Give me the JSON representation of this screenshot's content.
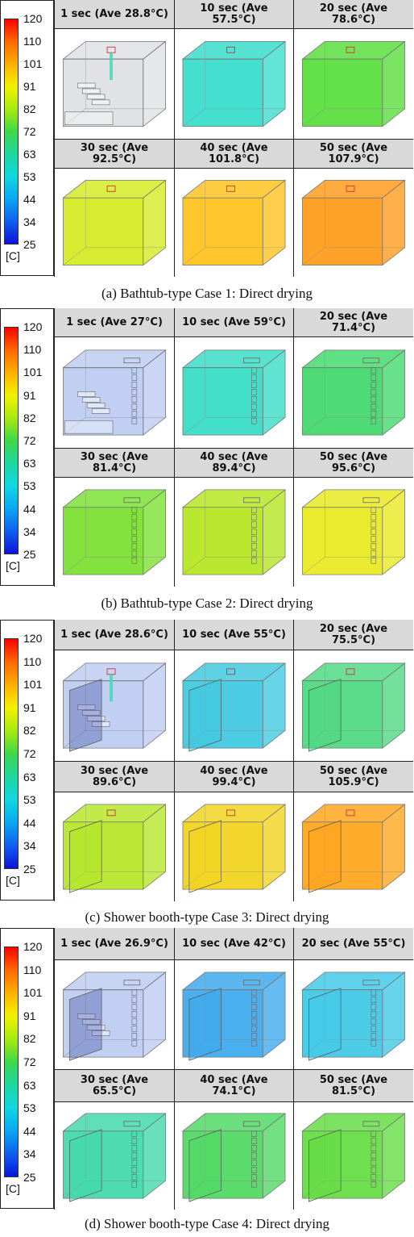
{
  "legend": {
    "ticks": [
      "120",
      "110",
      "101",
      "91",
      "82",
      "72",
      "63",
      "53",
      "44",
      "34",
      "25"
    ],
    "unit": "[C]",
    "gradient_colors": [
      "#ff0000",
      "#ff6a00",
      "#ffb000",
      "#f2f200",
      "#a8ea10",
      "#3fd84a",
      "#1fd8a0",
      "#10d8e0",
      "#0aa8f2",
      "#1060f0",
      "#0a14d8"
    ]
  },
  "panels": [
    {
      "caption": "(a) Bathtub-type Case 1: Direct drying",
      "type": "bathtub",
      "cells": [
        {
          "label": "1 sec (Ave 28.8°C)",
          "tint": "#c8cbd0",
          "initial": true
        },
        {
          "label": "10 sec (Ave 57.5°C)",
          "tint": "#35dccb"
        },
        {
          "label": "20 sec (Ave 78.6°C)",
          "tint": "#57dd3a"
        },
        {
          "label": "30 sec (Ave 92.5°C)",
          "tint": "#d4ea1f"
        },
        {
          "label": "40 sec (Ave 101.8°C)",
          "tint": "#ffc21a"
        },
        {
          "label": "50 sec (Ave 107.9°C)",
          "tint": "#ff9a18"
        }
      ]
    },
    {
      "caption": "(b) Bathtub-type Case 2: Direct drying",
      "type": "bathtub2",
      "cells": [
        {
          "label": "1 sec (Ave 27°C)",
          "tint": "#8ea8e8",
          "initial": true
        },
        {
          "label": "10 sec (Ave 59°C)",
          "tint": "#33dcc4"
        },
        {
          "label": "20 sec (Ave 71.4°C)",
          "tint": "#3fd86a"
        },
        {
          "label": "30 sec (Ave 81.4°C)",
          "tint": "#78e02e"
        },
        {
          "label": "40 sec (Ave 89.4°C)",
          "tint": "#b4e61c"
        },
        {
          "label": "50 sec (Ave 95.6°C)",
          "tint": "#e8e81c"
        }
      ]
    },
    {
      "caption": "(c) Shower booth-type Case 3: Direct drying",
      "type": "shower",
      "cells": [
        {
          "label": "1 sec (Ave 28.6°C)",
          "tint": "#8ea8e8",
          "initial": true
        },
        {
          "label": "10 sec (Ave 55°C)",
          "tint": "#3cc8e0"
        },
        {
          "label": "20 sec (Ave 75.5°C)",
          "tint": "#4cd880"
        },
        {
          "label": "30 sec (Ave 89.6°C)",
          "tint": "#b4e624"
        },
        {
          "label": "40 sec (Ave 99.4°C)",
          "tint": "#f2d21a"
        },
        {
          "label": "50 sec (Ave 105.9°C)",
          "tint": "#ffa41a"
        }
      ]
    },
    {
      "caption": "(d) Shower booth-type Case 4: Direct drying",
      "type": "shower2",
      "cells": [
        {
          "label": "1 sec (Ave 26.9°C)",
          "tint": "#8ea8e8",
          "initial": true
        },
        {
          "label": "10 sec (Ave 42°C)",
          "tint": "#3aa8ee"
        },
        {
          "label": "20 sec (Ave 55°C)",
          "tint": "#3ec8e6"
        },
        {
          "label": "30 sec (Ave 65.5°C)",
          "tint": "#3ed8a8"
        },
        {
          "label": "40 sec (Ave 74.1°C)",
          "tint": "#4cd860"
        },
        {
          "label": "50 sec (Ave 81.5°C)",
          "tint": "#62dc40"
        }
      ]
    }
  ]
}
